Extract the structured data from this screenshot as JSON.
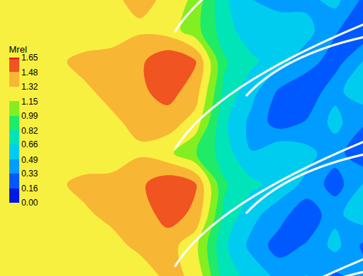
{
  "chart_data": {
    "type": "contour",
    "colorbar_title": "Mrel",
    "colorbar_range": [
      0,
      1.65
    ],
    "colorbar_ticks": [
      {
        "value": 0,
        "label": "0.00"
      },
      0.16,
      0.33,
      0.49,
      0.66,
      0.82,
      0.99,
      1.15,
      1.32,
      1.48,
      1.65
    ],
    "tick_labels": false,
    "grid": false,
    "cells": [
      [
        1.2,
        1.22,
        1.3,
        1.25,
        1.2,
        1.25,
        1.35,
        1.3,
        0.75,
        0.6,
        0.45,
        0.5,
        0.3,
        0.4
      ],
      [
        1.22,
        1.3,
        1.25,
        1.2,
        1.28,
        1.35,
        1.4,
        1.2,
        0.7,
        0.45,
        0.25,
        0.35,
        0.55,
        0.3
      ],
      [
        1.25,
        1.22,
        1.2,
        1.3,
        1.35,
        1.4,
        1.55,
        1.45,
        0.8,
        0.55,
        0.4,
        0.2,
        0.45,
        0.6
      ],
      [
        1.2,
        1.2,
        1.3,
        1.35,
        1.38,
        1.45,
        1.6,
        1.5,
        0.85,
        0.7,
        0.6,
        0.45,
        0.25,
        0.5
      ],
      [
        1.2,
        1.28,
        1.32,
        1.25,
        1.22,
        1.3,
        1.2,
        1.0,
        0.75,
        0.5,
        0.65,
        0.55,
        0.4,
        0.2
      ],
      [
        1.22,
        1.25,
        1.2,
        1.2,
        1.3,
        1.35,
        1.4,
        1.25,
        0.7,
        0.45,
        0.25,
        0.35,
        0.55,
        0.35
      ],
      [
        1.25,
        1.2,
        1.22,
        1.3,
        1.35,
        1.45,
        1.55,
        1.4,
        0.8,
        0.55,
        0.3,
        0.2,
        0.45,
        0.6
      ],
      [
        1.2,
        1.22,
        1.3,
        1.35,
        1.4,
        1.45,
        1.62,
        1.5,
        0.85,
        0.7,
        0.55,
        0.4,
        0.25,
        0.5
      ],
      [
        1.2,
        1.28,
        1.32,
        1.25,
        1.22,
        1.3,
        1.25,
        1.05,
        0.75,
        0.55,
        0.65,
        0.55,
        0.35,
        0.2
      ],
      [
        1.22,
        1.25,
        1.2,
        1.22,
        1.3,
        1.35,
        1.3,
        1.1,
        0.7,
        0.5,
        0.4,
        0.45,
        0.55,
        0.3
      ]
    ]
  }
}
